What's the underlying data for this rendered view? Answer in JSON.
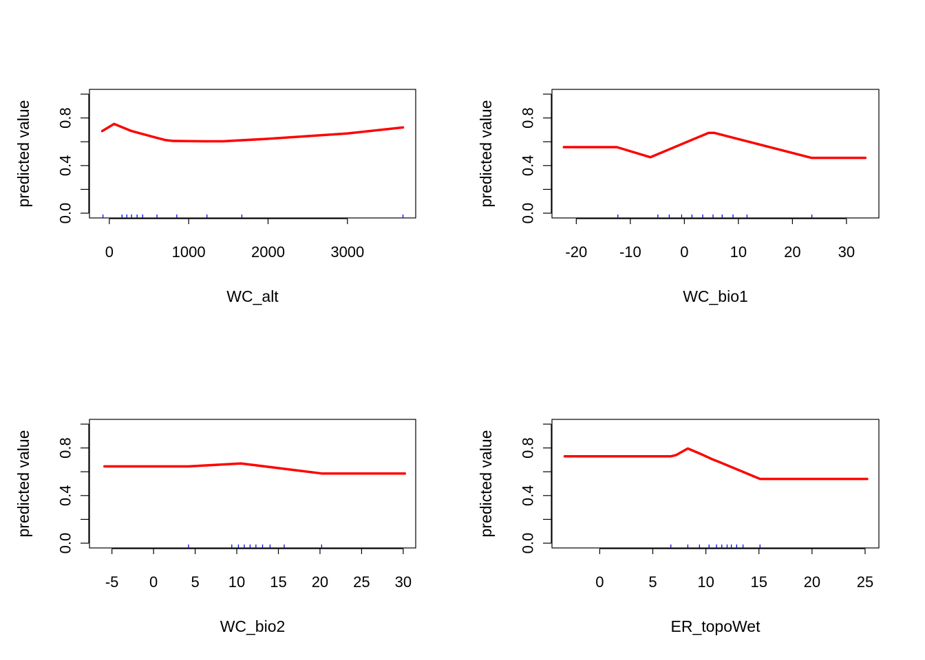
{
  "colors": {
    "curve": "#ff0000",
    "rug": "#0000ff"
  },
  "chart_data": [
    {
      "type": "line",
      "xlabel": "WC_alt",
      "ylabel": "predicted value",
      "xlim": [
        -250,
        3860
      ],
      "ylim": [
        -0.04,
        1.04
      ],
      "xticks": [
        0,
        1000,
        2000,
        3000
      ],
      "yticks": [
        0.0,
        0.2,
        0.4,
        0.6,
        0.8,
        1.0
      ],
      "ytick_labels": [
        "0.0",
        "",
        "0.4",
        "",
        "0.8",
        ""
      ],
      "series": [
        {
          "x": [
            -90,
            60,
            280,
            560,
            700,
            800,
            1000,
            1200,
            1430,
            2000,
            3000,
            3700
          ],
          "y": [
            0.69,
            0.75,
            0.69,
            0.64,
            0.615,
            0.607,
            0.605,
            0.604,
            0.604,
            0.625,
            0.67,
            0.72
          ]
        }
      ],
      "rug": [
        -80,
        160,
        220,
        280,
        350,
        420,
        600,
        850,
        1230,
        1670,
        3700
      ]
    },
    {
      "type": "line",
      "xlabel": "WC_bio1",
      "ylabel": "predicted value",
      "xlim": [
        -24.5,
        36
      ],
      "ylim": [
        -0.04,
        1.04
      ],
      "xticks": [
        -20,
        -10,
        0,
        10,
        20,
        30
      ],
      "yticks": [
        0.0,
        0.2,
        0.4,
        0.6,
        0.8,
        1.0
      ],
      "ytick_labels": [
        "0.0",
        "",
        "0.4",
        "",
        "0.8",
        ""
      ],
      "series": [
        {
          "x": [
            -22.3,
            -12.5,
            -6.3,
            4.5,
            5.5,
            23.5,
            33.5
          ],
          "y": [
            0.555,
            0.555,
            0.47,
            0.675,
            0.675,
            0.465,
            0.465
          ]
        }
      ],
      "rug": [
        -12.3,
        -4.9,
        -2.8,
        -0.5,
        1.4,
        3.4,
        5.3,
        7.0,
        9.0,
        11.6,
        23.6
      ]
    },
    {
      "type": "line",
      "xlabel": "WC_bio2",
      "ylabel": "predicted value",
      "xlim": [
        -7.7,
        31.5
      ],
      "ylim": [
        -0.04,
        1.04
      ],
      "xticks": [
        -5,
        0,
        5,
        10,
        15,
        20,
        25,
        30
      ],
      "yticks": [
        0.0,
        0.2,
        0.4,
        0.6,
        0.8,
        1.0
      ],
      "ytick_labels": [
        "0.0",
        "",
        "0.4",
        "",
        "0.8",
        ""
      ],
      "series": [
        {
          "x": [
            -5.9,
            4.2,
            10.5,
            20.3,
            30.2
          ],
          "y": [
            0.645,
            0.645,
            0.67,
            0.585,
            0.585
          ]
        }
      ],
      "rug": [
        4.2,
        9.4,
        10.2,
        10.9,
        11.6,
        12.3,
        13.1,
        14.0,
        15.7,
        20.2
      ]
    },
    {
      "type": "line",
      "xlabel": "ER_topoWet",
      "ylabel": "predicted value",
      "xlim": [
        -4.5,
        26.3
      ],
      "ylim": [
        -0.04,
        1.04
      ],
      "xticks": [
        0,
        5,
        10,
        15,
        20,
        25
      ],
      "yticks": [
        0.0,
        0.2,
        0.4,
        0.6,
        0.8,
        1.0
      ],
      "ytick_labels": [
        "0.0",
        "",
        "0.4",
        "",
        "0.8",
        ""
      ],
      "series": [
        {
          "x": [
            -3.3,
            6.7,
            7.2,
            8.3,
            9.5,
            10.6,
            11.3,
            15.1,
            25.2
          ],
          "y": [
            0.73,
            0.73,
            0.74,
            0.795,
            0.75,
            0.705,
            0.68,
            0.54,
            0.54
          ]
        }
      ],
      "rug": [
        6.7,
        8.3,
        9.4,
        10.3,
        11.0,
        11.5,
        12.0,
        12.4,
        12.9,
        13.5,
        15.1
      ]
    }
  ]
}
